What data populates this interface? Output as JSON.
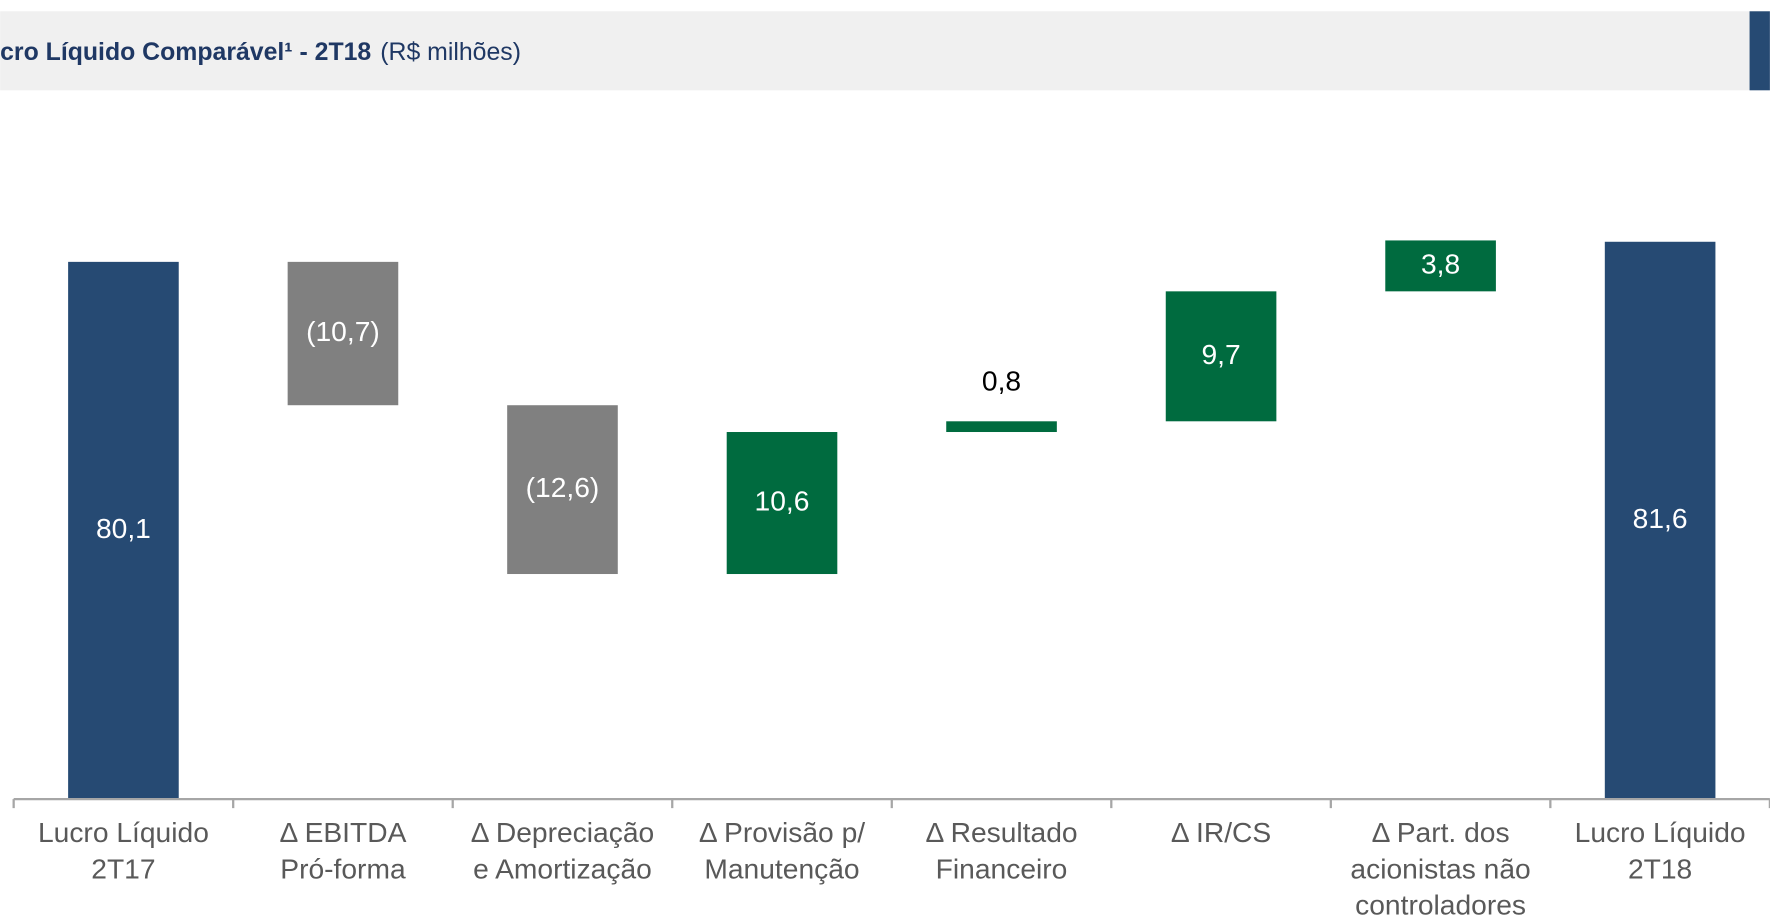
{
  "chart_data": {
    "type": "waterfall",
    "title": "cro Líquido Comparável¹ - 2T18",
    "subtitle": "(R$ milhões)",
    "categories": [
      "Lucro Líquido\n2T17",
      "Δ EBITDA\nPró-forma",
      "Δ Depreciação\ne Amortização",
      "Δ Provisão p/\nManutenção",
      "Δ Resultado\nFinanceiro",
      "Δ IR/CS",
      "Δ Part. dos\nacionistas não\ncontroladores",
      "Lucro Líquido\n2T18"
    ],
    "values": [
      80.1,
      -10.7,
      -12.6,
      10.6,
      0.8,
      9.7,
      3.8,
      81.6
    ],
    "value_labels": [
      "80,1",
      "(10,7)",
      "(12,6)",
      "10,6",
      "0,8",
      "9,7",
      "3,8",
      "81,6"
    ],
    "colors": {
      "total": "#264a73",
      "negative": "#808080",
      "positive": "#006b3f"
    },
    "ylim": [
      40,
      90
    ]
  }
}
